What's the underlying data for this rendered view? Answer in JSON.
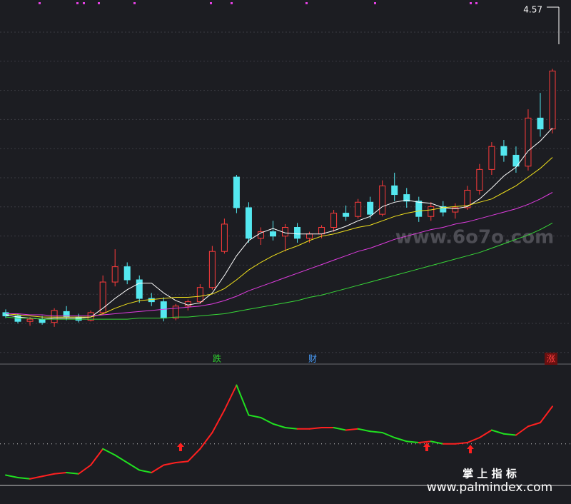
{
  "chart_data": {
    "type": "candlestick",
    "ylim": [
      2.0,
      5.2
    ],
    "up_color": "#ff3b3b",
    "down_color": "#54e8f0",
    "open": [
      2.34,
      2.31,
      2.26,
      2.28,
      2.25,
      2.35,
      2.3,
      2.27,
      2.34,
      2.62,
      2.76,
      2.64,
      2.47,
      2.44,
      2.29,
      2.4,
      2.44,
      2.57,
      2.9,
      3.58,
      3.3,
      3.02,
      3.08,
      3.04,
      3.12,
      3.02,
      3.06,
      3.12,
      3.25,
      3.22,
      3.35,
      3.24,
      3.5,
      3.42,
      3.36,
      3.22,
      3.31,
      3.26,
      3.3,
      3.46,
      3.65,
      3.86,
      3.78,
      3.68,
      4.12,
      4.02
    ],
    "high": [
      2.37,
      2.33,
      2.3,
      2.31,
      2.38,
      2.4,
      2.33,
      2.36,
      2.68,
      2.92,
      2.8,
      2.68,
      2.52,
      2.48,
      2.42,
      2.46,
      2.6,
      2.95,
      3.2,
      3.6,
      3.35,
      3.12,
      3.18,
      3.15,
      3.16,
      3.08,
      3.14,
      3.28,
      3.32,
      3.38,
      3.4,
      3.55,
      3.62,
      3.48,
      3.4,
      3.35,
      3.36,
      3.34,
      3.5,
      3.7,
      3.9,
      3.92,
      3.86,
      4.2,
      4.35,
      4.57
    ],
    "low": [
      2.29,
      2.24,
      2.22,
      2.23,
      2.21,
      2.27,
      2.25,
      2.26,
      2.32,
      2.58,
      2.6,
      2.43,
      2.4,
      2.26,
      2.27,
      2.36,
      2.42,
      2.55,
      2.88,
      3.25,
      2.98,
      2.96,
      3.0,
      2.9,
      2.98,
      2.98,
      3.02,
      3.08,
      3.18,
      3.2,
      3.2,
      3.22,
      3.36,
      3.3,
      3.17,
      3.18,
      3.22,
      3.2,
      3.28,
      3.42,
      3.6,
      3.72,
      3.62,
      3.64,
      3.95,
      3.98
    ],
    "close": [
      2.31,
      2.26,
      2.28,
      2.25,
      2.36,
      2.3,
      2.27,
      2.34,
      2.62,
      2.76,
      2.64,
      2.47,
      2.44,
      2.29,
      2.4,
      2.44,
      2.57,
      2.9,
      3.15,
      3.3,
      3.02,
      3.08,
      3.04,
      3.12,
      3.02,
      3.06,
      3.12,
      3.25,
      3.22,
      3.35,
      3.24,
      3.5,
      3.42,
      3.36,
      3.22,
      3.31,
      3.26,
      3.3,
      3.46,
      3.65,
      3.86,
      3.78,
      3.68,
      4.12,
      4.02,
      4.55
    ],
    "ma_series": [
      {
        "color": "#ffffff",
        "values": [
          2.32,
          2.3,
          2.29,
          2.28,
          2.29,
          2.29,
          2.29,
          2.3,
          2.38,
          2.47,
          2.55,
          2.61,
          2.61,
          2.52,
          2.45,
          2.41,
          2.43,
          2.52,
          2.68,
          2.86,
          3.0,
          3.07,
          3.11,
          3.07,
          3.06,
          3.06,
          3.06,
          3.09,
          3.13,
          3.18,
          3.22,
          3.31,
          3.35,
          3.37,
          3.35,
          3.34,
          3.3,
          3.29,
          3.31,
          3.38,
          3.48,
          3.59,
          3.67,
          3.82,
          3.91,
          4.03
        ]
      },
      {
        "color": "#f2e21c",
        "values": [
          2.33,
          2.32,
          2.31,
          2.3,
          2.3,
          2.3,
          2.3,
          2.3,
          2.33,
          2.38,
          2.42,
          2.45,
          2.46,
          2.47,
          2.48,
          2.48,
          2.49,
          2.51,
          2.56,
          2.64,
          2.73,
          2.8,
          2.86,
          2.91,
          2.95,
          3.0,
          3.04,
          3.06,
          3.09,
          3.12,
          3.14,
          3.18,
          3.22,
          3.25,
          3.27,
          3.28,
          3.3,
          3.31,
          3.32,
          3.35,
          3.38,
          3.44,
          3.5,
          3.58,
          3.66,
          3.76
        ]
      },
      {
        "color": "#e03ce0",
        "values": [
          2.33,
          2.33,
          2.32,
          2.32,
          2.31,
          2.31,
          2.31,
          2.31,
          2.32,
          2.33,
          2.34,
          2.35,
          2.36,
          2.37,
          2.38,
          2.39,
          2.4,
          2.42,
          2.45,
          2.49,
          2.54,
          2.58,
          2.62,
          2.66,
          2.7,
          2.74,
          2.78,
          2.82,
          2.86,
          2.9,
          2.93,
          2.97,
          3.01,
          3.04,
          3.07,
          3.1,
          3.12,
          3.15,
          3.17,
          3.2,
          3.23,
          3.26,
          3.29,
          3.33,
          3.38,
          3.44
        ]
      },
      {
        "color": "#38d838",
        "values": [
          2.3,
          2.29,
          2.29,
          2.28,
          2.28,
          2.28,
          2.28,
          2.28,
          2.28,
          2.28,
          2.28,
          2.29,
          2.29,
          2.29,
          2.3,
          2.3,
          2.31,
          2.32,
          2.33,
          2.35,
          2.37,
          2.39,
          2.41,
          2.43,
          2.45,
          2.48,
          2.5,
          2.53,
          2.56,
          2.59,
          2.62,
          2.65,
          2.68,
          2.71,
          2.74,
          2.77,
          2.8,
          2.83,
          2.86,
          2.89,
          2.93,
          2.97,
          3.01,
          3.05,
          3.1,
          3.16
        ]
      }
    ],
    "indicator": {
      "ylim": [
        0,
        100
      ],
      "ref_level": 39,
      "up_color": "#ff2020",
      "down_color": "#20e020",
      "values": [
        14,
        12,
        11,
        13,
        15,
        16,
        15,
        22,
        35,
        30,
        24,
        18,
        16,
        22,
        24,
        25,
        35,
        48,
        66,
        86,
        62,
        60,
        55,
        52,
        51,
        51,
        52,
        52,
        50,
        51,
        49,
        48,
        44,
        41,
        40,
        41,
        39,
        39,
        40,
        44,
        50,
        47,
        46,
        53,
        56,
        69
      ]
    },
    "annotations": [
      {
        "text": "跌",
        "color": "#2fd12f"
      },
      {
        "text": "财",
        "color": "#4aa0ff"
      },
      {
        "text": "涨",
        "color": "#ff4040"
      }
    ],
    "watermark": "www.6o7o.com",
    "indicator_title": "掌 上 指 标",
    "site": "www.palmindex.com"
  }
}
